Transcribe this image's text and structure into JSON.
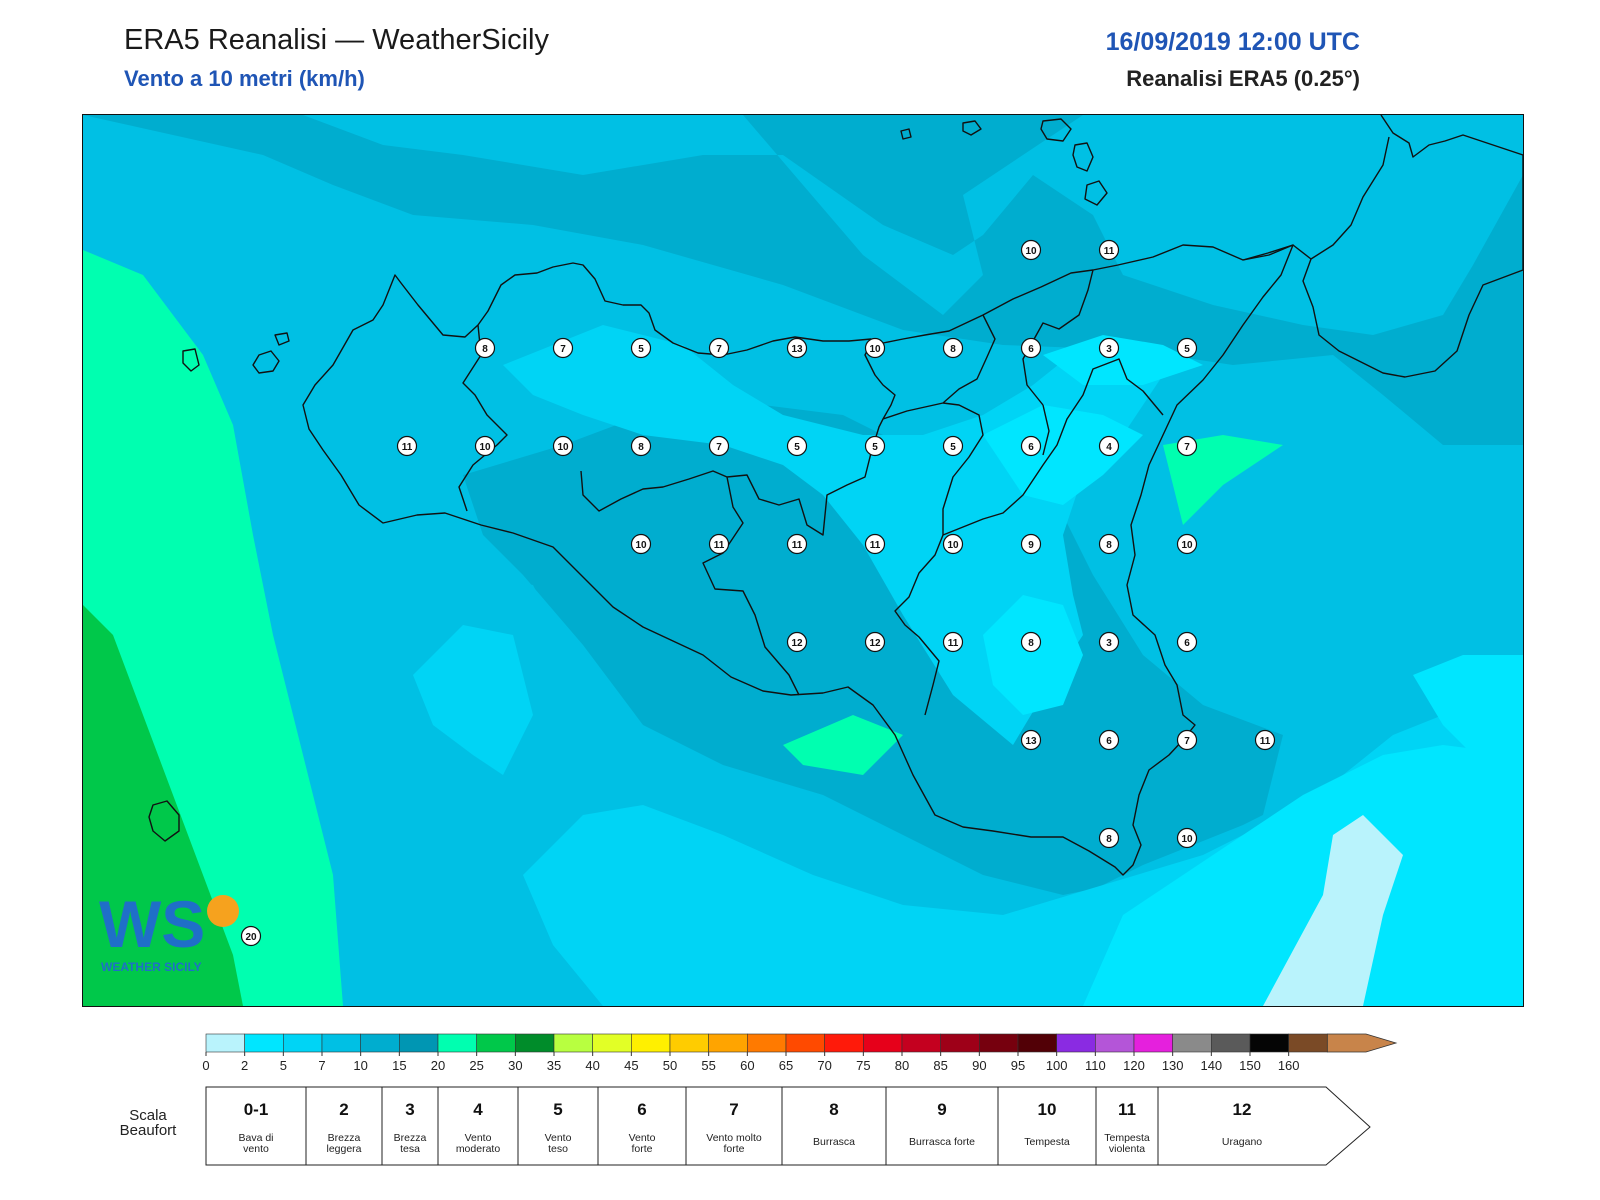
{
  "header": {
    "title": "ERA5 Reanalisi — WeatherSicily",
    "subtitle": "Vento a 10 metri (km/h)",
    "datetime": "16/09/2019 12:00 UTC",
    "dataset": "Reanalisi ERA5 (0.25°)"
  },
  "logo": {
    "letters": "WS",
    "text": "WEATHER SICILY"
  },
  "stations": [
    {
      "row": 0,
      "col": 11,
      "value": "10"
    },
    {
      "row": 0,
      "col": 12,
      "value": "11"
    },
    {
      "row": 1,
      "col": 4,
      "value": "8"
    },
    {
      "row": 1,
      "col": 5,
      "value": "7"
    },
    {
      "row": 1,
      "col": 6,
      "value": "5"
    },
    {
      "row": 1,
      "col": 7,
      "value": "7"
    },
    {
      "row": 1,
      "col": 8,
      "value": "13"
    },
    {
      "row": 1,
      "col": 9,
      "value": "10"
    },
    {
      "row": 1,
      "col": 10,
      "value": "8"
    },
    {
      "row": 1,
      "col": 11,
      "value": "6"
    },
    {
      "row": 1,
      "col": 12,
      "value": "3"
    },
    {
      "row": 1,
      "col": 13,
      "value": "5"
    },
    {
      "row": 2,
      "col": 3,
      "value": "11"
    },
    {
      "row": 2,
      "col": 4,
      "value": "10"
    },
    {
      "row": 2,
      "col": 5,
      "value": "10"
    },
    {
      "row": 2,
      "col": 6,
      "value": "8"
    },
    {
      "row": 2,
      "col": 7,
      "value": "7"
    },
    {
      "row": 2,
      "col": 8,
      "value": "5"
    },
    {
      "row": 2,
      "col": 9,
      "value": "5"
    },
    {
      "row": 2,
      "col": 10,
      "value": "5"
    },
    {
      "row": 2,
      "col": 11,
      "value": "6"
    },
    {
      "row": 2,
      "col": 12,
      "value": "4"
    },
    {
      "row": 2,
      "col": 13,
      "value": "7"
    },
    {
      "row": 3,
      "col": 6,
      "value": "10"
    },
    {
      "row": 3,
      "col": 7,
      "value": "11"
    },
    {
      "row": 3,
      "col": 8,
      "value": "11"
    },
    {
      "row": 3,
      "col": 9,
      "value": "11"
    },
    {
      "row": 3,
      "col": 10,
      "value": "10"
    },
    {
      "row": 3,
      "col": 11,
      "value": "9"
    },
    {
      "row": 3,
      "col": 12,
      "value": "8"
    },
    {
      "row": 3,
      "col": 13,
      "value": "10"
    },
    {
      "row": 4,
      "col": 8,
      "value": "12"
    },
    {
      "row": 4,
      "col": 9,
      "value": "12"
    },
    {
      "row": 4,
      "col": 10,
      "value": "11"
    },
    {
      "row": 4,
      "col": 11,
      "value": "8"
    },
    {
      "row": 4,
      "col": 12,
      "value": "3"
    },
    {
      "row": 4,
      "col": 13,
      "value": "6"
    },
    {
      "row": 5,
      "col": 11,
      "value": "13"
    },
    {
      "row": 5,
      "col": 12,
      "value": "6"
    },
    {
      "row": 5,
      "col": 13,
      "value": "7"
    },
    {
      "row": 5,
      "col": 14,
      "value": "11"
    },
    {
      "row": 6,
      "col": 12,
      "value": "8"
    },
    {
      "row": 6,
      "col": 13,
      "value": "10"
    },
    {
      "row": 7,
      "col": 1,
      "value": "20"
    }
  ],
  "colorbar": {
    "ticks": [
      "0",
      "2",
      "5",
      "7",
      "10",
      "15",
      "20",
      "25",
      "30",
      "35",
      "40",
      "45",
      "50",
      "55",
      "60",
      "65",
      "70",
      "75",
      "80",
      "85",
      "90",
      "95",
      "100",
      "110",
      "120",
      "130",
      "140",
      "150",
      "160"
    ],
    "colors": [
      "#b9f3fc",
      "#00e6ff",
      "#00d4f5",
      "#00c0e4",
      "#00adcf",
      "#0096b3",
      "#00ffb0",
      "#00c84a",
      "#008c2a",
      "#b8ff40",
      "#e2ff26",
      "#fff000",
      "#ffcc00",
      "#ffa400",
      "#ff7a00",
      "#ff4a00",
      "#ff1a0a",
      "#e6001a",
      "#c4001f",
      "#9e0018",
      "#76000e",
      "#520006",
      "#8a2be2",
      "#b455d8",
      "#e520dd",
      "#8a8a8a",
      "#5a5a5a",
      "#050505",
      "#7a4a26",
      "#c8844a"
    ]
  },
  "beaufort": {
    "label": "Scala Beaufort",
    "scales": [
      {
        "force": "0-1",
        "desc": "Bava di vento"
      },
      {
        "force": "2",
        "desc": "Brezza leggera"
      },
      {
        "force": "3",
        "desc": "Brezza tesa"
      },
      {
        "force": "4",
        "desc": "Vento moderato"
      },
      {
        "force": "5",
        "desc": "Vento teso"
      },
      {
        "force": "6",
        "desc": "Vento forte"
      },
      {
        "force": "7",
        "desc": "Vento molto forte"
      },
      {
        "force": "8",
        "desc": "Burrasca"
      },
      {
        "force": "9",
        "desc": "Burrasca forte"
      },
      {
        "force": "10",
        "desc": "Tempesta"
      },
      {
        "force": "11",
        "desc": "Tempesta violenta"
      },
      {
        "force": "12",
        "desc": "Uragano"
      }
    ]
  }
}
